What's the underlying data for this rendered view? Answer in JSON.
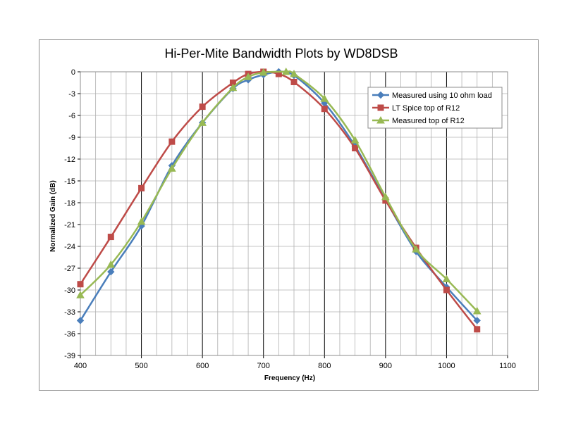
{
  "chart_data": {
    "type": "line",
    "title": "Hi-Per-Mite Bandwidth Plots by WD8DSB",
    "xlabel": "Frequency (Hz)",
    "ylabel": "Normalized Gain (dB)",
    "xlim": [
      400,
      1100
    ],
    "ylim": [
      -39,
      0
    ],
    "x_major_step": 100,
    "x_minor_step": 25,
    "y_step": 3,
    "x_ticks": [
      "400",
      "500",
      "600",
      "700",
      "800",
      "900",
      "1000",
      "1100"
    ],
    "y_ticks": [
      "0",
      "-3",
      "-6",
      "-9",
      "-12",
      "-15",
      "-18",
      "-21",
      "-24",
      "-27",
      "-30",
      "-33",
      "-36",
      "-39"
    ],
    "grid": true,
    "legend_position": "top-right",
    "series": [
      {
        "name": "Measured using 10 ohm load",
        "color": "#4a7ebb",
        "marker": "diamond",
        "points": [
          [
            400,
            -34.2
          ],
          [
            450,
            -27.5
          ],
          [
            500,
            -21.2
          ],
          [
            550,
            -12.9
          ],
          [
            600,
            -7.0
          ],
          [
            650,
            -2.3
          ],
          [
            675,
            -1.1
          ],
          [
            700,
            -0.4
          ],
          [
            725,
            0
          ],
          [
            750,
            -0.5
          ],
          [
            800,
            -4.3
          ],
          [
            850,
            -10.2
          ],
          [
            900,
            -17.6
          ],
          [
            950,
            -24.7
          ],
          [
            1000,
            -29.6
          ],
          [
            1050,
            -34.2
          ]
        ]
      },
      {
        "name": "LT Spice top of R12",
        "color": "#be4b48",
        "marker": "square",
        "points": [
          [
            400,
            -29.2
          ],
          [
            450,
            -22.7
          ],
          [
            500,
            -16.0
          ],
          [
            550,
            -9.6
          ],
          [
            600,
            -4.8
          ],
          [
            650,
            -1.5
          ],
          [
            675,
            -0.3
          ],
          [
            700,
            0
          ],
          [
            725,
            -0.3
          ],
          [
            750,
            -1.4
          ],
          [
            800,
            -5.1
          ],
          [
            850,
            -10.5
          ],
          [
            900,
            -17.7
          ],
          [
            950,
            -24.2
          ],
          [
            1000,
            -30.0
          ],
          [
            1050,
            -35.4
          ]
        ]
      },
      {
        "name": "Measured top of R12",
        "color": "#98b954",
        "marker": "triangle",
        "points": [
          [
            400,
            -30.7
          ],
          [
            450,
            -26.5
          ],
          [
            500,
            -20.6
          ],
          [
            550,
            -13.3
          ],
          [
            600,
            -7.0
          ],
          [
            650,
            -2.2
          ],
          [
            675,
            -0.7
          ],
          [
            700,
            -0.1
          ],
          [
            737,
            0
          ],
          [
            750,
            -0.3
          ],
          [
            800,
            -3.7
          ],
          [
            850,
            -9.4
          ],
          [
            900,
            -17.2
          ],
          [
            950,
            -24.4
          ],
          [
            1000,
            -28.5
          ],
          [
            1050,
            -32.9
          ]
        ]
      }
    ]
  }
}
